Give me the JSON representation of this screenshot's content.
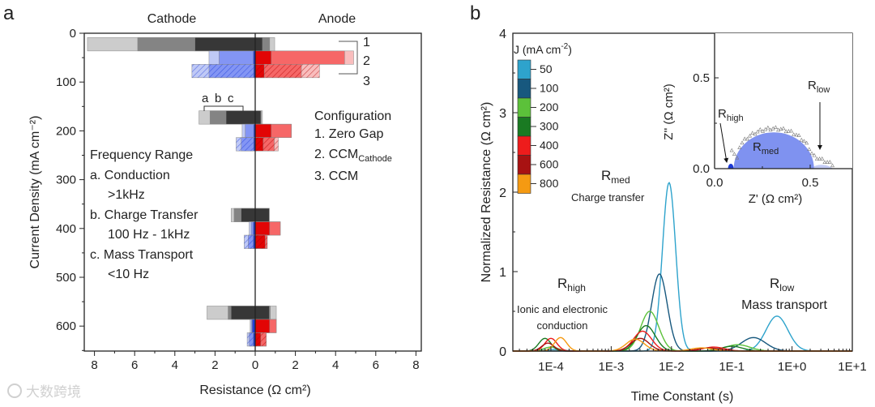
{
  "chart_data": [
    {
      "type": "bar",
      "panel_label": "a",
      "orientation": "horizontal-diverging",
      "side_labels": {
        "left": "Cathode",
        "right": "Anode"
      },
      "xlabel": "Resistance (Ω cm²)",
      "ylabel": "Current Density (mA cm⁻²)",
      "xlim": [
        -8,
        8
      ],
      "ylim": [
        0,
        650
      ],
      "xticks": [
        "8",
        "6",
        "4",
        "2",
        "0",
        "2",
        "4",
        "6",
        "8"
      ],
      "yticks": [
        "0",
        "100",
        "200",
        "300",
        "400",
        "500",
        "600"
      ],
      "ytick_values": [
        0,
        100,
        200,
        300,
        400,
        500,
        600
      ],
      "segment_note": "cumulative ends per segment: [a (light/outer), b (mid), c (dark/inner)]",
      "groups": [
        {
          "current_density": 50,
          "rows": [
            {
              "config": 1,
              "cathode": [
                -8.35,
                -5.85,
                -3.0
              ],
              "anode": [
                0.97,
                0.72,
                0.36
              ]
            },
            {
              "config": 2,
              "cathode": [
                -2.3,
                -1.8,
                -0.1
              ],
              "anode": [
                4.9,
                4.45,
                0.8
              ]
            },
            {
              "config": 3,
              "cathode": [
                -3.15,
                -2.3,
                -0.08
              ],
              "anode": [
                3.2,
                2.3,
                0.45
              ]
            }
          ]
        },
        {
          "current_density": 200,
          "rows": [
            {
              "config": 1,
              "cathode": [
                -2.8,
                -2.25,
                -1.45
              ],
              "anode": [
                0.36,
                0.3,
                0.28
              ]
            },
            {
              "config": 2,
              "cathode": [
                -0.65,
                -0.5,
                -0.08
              ],
              "anode": [
                1.8,
                1.8,
                0.8
              ]
            },
            {
              "config": 3,
              "cathode": [
                -0.95,
                -0.7,
                -0.08
              ],
              "anode": [
                1.15,
                0.95,
                0.4
              ]
            }
          ]
        },
        {
          "current_density": 400,
          "rows": [
            {
              "config": 1,
              "cathode": [
                -1.2,
                -1.05,
                -0.7
              ],
              "anode": [
                0.7,
                0.7,
                0.7
              ]
            },
            {
              "config": 2,
              "cathode": [
                -0.3,
                -0.2,
                -0.1
              ],
              "anode": [
                1.25,
                1.25,
                0.72
              ]
            },
            {
              "config": 3,
              "cathode": [
                -0.55,
                -0.35,
                -0.1
              ],
              "anode": [
                0.6,
                0.6,
                0.5
              ]
            }
          ]
        },
        {
          "current_density": 600,
          "rows": [
            {
              "config": 1,
              "cathode": [
                -2.4,
                -1.35,
                -1.2
              ],
              "anode": [
                1.05,
                0.75,
                0.7
              ]
            },
            {
              "config": 2,
              "cathode": [
                -0.25,
                -0.2,
                -0.15
              ],
              "anode": [
                1.05,
                1.05,
                0.72
              ]
            },
            {
              "config": 3,
              "cathode": [
                -0.4,
                -0.3,
                -0.1
              ],
              "anode": [
                0.55,
                0.55,
                0.28
              ]
            }
          ]
        }
      ],
      "bracket_labels": [
        "1",
        "2",
        "3"
      ],
      "abc_labels": [
        "a",
        "b",
        "c"
      ],
      "configuration": {
        "title": "Configuration",
        "items": [
          {
            "text": "1. Zero Gap",
            "sub": ""
          },
          {
            "text": "2. CCM",
            "sub": "Cathode"
          },
          {
            "text": "3. CCM",
            "sub": ""
          }
        ]
      },
      "frequency_range": {
        "title": "Frequency Range",
        "lines": [
          "a. Conduction",
          ">1kHz",
          "b. Charge Transfer",
          "100 Hz - 1kHz",
          "c. Mass Transport",
          "<10 Hz"
        ]
      },
      "colors": {
        "gray": [
          "#c9c9c9",
          "#7f7f7f",
          "#333333"
        ],
        "blue": [
          "#bcc6f6",
          "#7f92f3",
          "#1c3ad6"
        ],
        "red": [
          "#f9b9b9",
          "#f56262",
          "#e00000"
        ]
      }
    },
    {
      "type": "line",
      "panel_label": "b",
      "xlabel": "Time Constant (s)",
      "ylabel": "Normalized Resistance (Ω cm²)",
      "xscale": "log",
      "xlim_log10": [
        -4.63,
        1
      ],
      "ylim": [
        0,
        4
      ],
      "xticks": [
        "1E-4",
        "1E-3",
        "1E-2",
        "1E-1",
        "1E+0",
        "1E+1"
      ],
      "xtick_log10": [
        -4,
        -3,
        -2,
        -1,
        0,
        1
      ],
      "yticks": [
        "0",
        "1",
        "2",
        "3",
        "4"
      ],
      "legend": {
        "title": "J (mA cm",
        "title_sup": "-2",
        "title_end": ")",
        "placement": "top-left colorbar"
      },
      "series_note": "each peak: [log10 tau, height, sigma (decades)]",
      "series": [
        {
          "name": "50",
          "color": "#2ea3cc",
          "peaks": [
            [
              -2.04,
              2.12,
              0.11
            ],
            [
              -0.25,
              0.44,
              0.18
            ],
            [
              -3.95,
              0.02,
              0.15
            ]
          ]
        },
        {
          "name": "100",
          "color": "#17587e",
          "peaks": [
            [
              -2.2,
              0.97,
              0.13
            ],
            [
              -0.64,
              0.17,
              0.2
            ]
          ]
        },
        {
          "name": "200",
          "color": "#5cc13a",
          "peaks": [
            [
              -2.36,
              0.5,
              0.15
            ],
            [
              -0.9,
              0.08,
              0.2
            ],
            [
              -4.0,
              0.05,
              0.12
            ]
          ]
        },
        {
          "name": "300",
          "color": "#1a7a22",
          "peaks": [
            [
              -2.42,
              0.32,
              0.15
            ],
            [
              -4.1,
              0.16,
              0.1
            ],
            [
              -1.0,
              0.06,
              0.18
            ]
          ]
        },
        {
          "name": "400",
          "color": "#ee1c1c",
          "peaks": [
            [
              -2.48,
              0.25,
              0.15
            ],
            [
              -4.0,
              0.16,
              0.1
            ],
            [
              -1.3,
              0.05,
              0.18
            ]
          ]
        },
        {
          "name": "600",
          "color": "#a81212",
          "peaks": [
            [
              -2.52,
              0.16,
              0.15
            ],
            [
              -4.05,
              0.1,
              0.1
            ],
            [
              -1.38,
              0.04,
              0.18
            ]
          ]
        },
        {
          "name": "800",
          "color": "#f59a12",
          "peaks": [
            [
              -2.6,
              0.15,
              0.15
            ],
            [
              -3.84,
              0.17,
              0.1
            ],
            [
              -1.5,
              0.04,
              0.18
            ]
          ]
        }
      ],
      "annotations": {
        "rmed": {
          "main": "R",
          "sub": "med",
          "desc": "Charge transfer"
        },
        "rhigh": {
          "main": "R",
          "sub": "high",
          "desc1": "Ionic and electronic",
          "desc2": "conduction"
        },
        "rlow": {
          "main": "R",
          "sub": "low",
          "desc": "Mass transport"
        }
      },
      "inset": {
        "type": "scatter",
        "xlabel": "Z' (Ω cm²)",
        "ylabel": "Z'' (Ω cm²)",
        "xlim": [
          0,
          0.72
        ],
        "ylim": [
          0,
          0.75
        ],
        "xticks": [
          "0.0",
          "0.5"
        ],
        "yticks": [
          "0.0",
          "0.5"
        ],
        "regions": [
          {
            "name": "Rhigh",
            "from": 0.07,
            "to": 0.1,
            "color": "#1c3ad6"
          },
          {
            "name": "Rmed",
            "from": 0.1,
            "to": 0.52,
            "color": "#7f92f0"
          },
          {
            "name": "Rlow",
            "from": 0.52,
            "to": 0.62,
            "color": "#c3cbf5"
          }
        ],
        "labels": {
          "rhigh": {
            "main": "R",
            "sub": "high"
          },
          "rmed": {
            "main": "R",
            "sub": "med"
          },
          "rlow": {
            "main": "R",
            "sub": "low"
          }
        }
      }
    }
  ],
  "watermark": {
    "text": "大数跨境"
  }
}
